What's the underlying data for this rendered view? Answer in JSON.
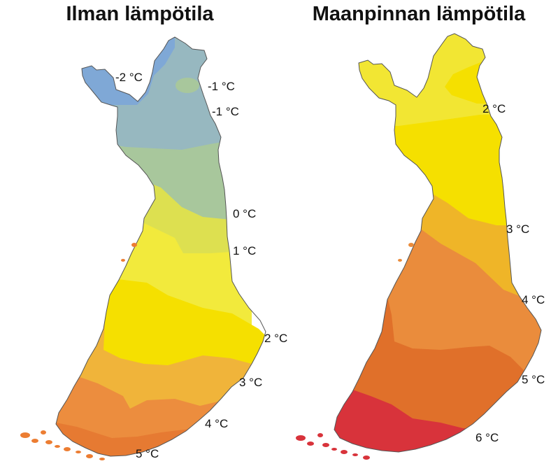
{
  "maps": {
    "air": {
      "title": "Ilman lämpötila",
      "labels": [
        "-2 °C",
        "-1 °C",
        "-1 °C",
        "0 °C",
        "1 °C",
        "2 °C",
        "3 °C",
        "4 °C",
        "5 °C"
      ],
      "zone_colors": [
        "#7fa8d6",
        "#97b8c0",
        "#a8c79c",
        "#dde050",
        "#f2ea3c",
        "#f5e000",
        "#f0b43a",
        "#ec8d3e"
      ]
    },
    "ground": {
      "title": "Maanpinnan lämpötila",
      "labels": [
        "2 °C",
        "3 °C",
        "4 °C",
        "5 °C",
        "6 °C"
      ],
      "zone_colors": [
        "#f2e633",
        "#f5e000",
        "#efb528",
        "#ea8c3c",
        "#e0702a",
        "#d8333b"
      ]
    }
  }
}
